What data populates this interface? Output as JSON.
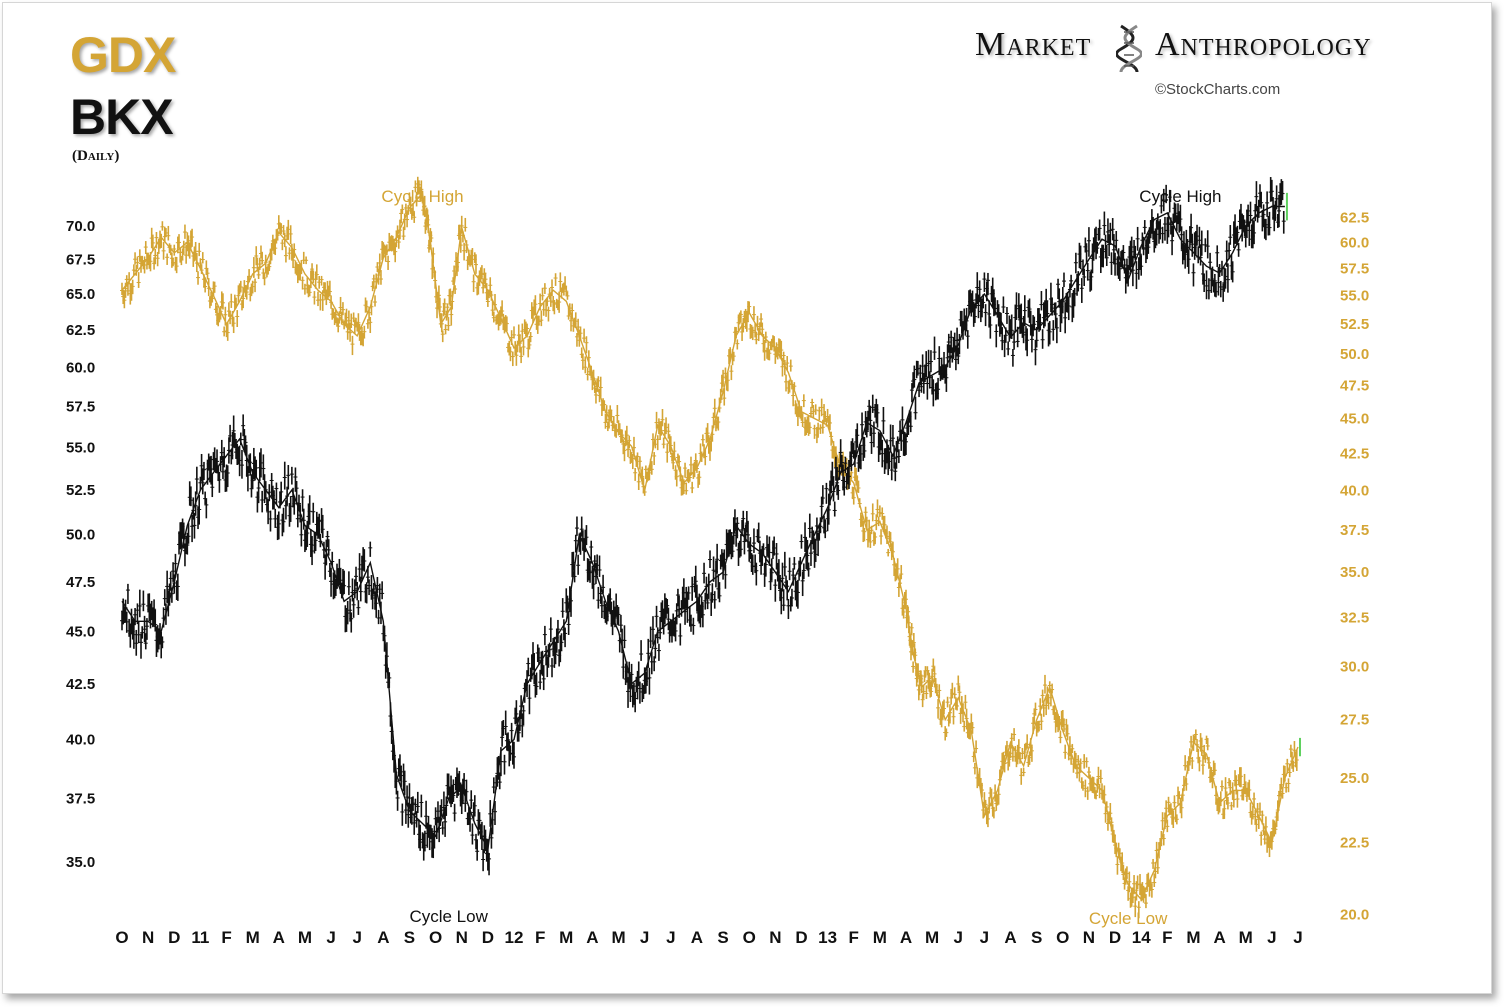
{
  "header": {
    "series_top": "GDX",
    "series_bottom": "BKX",
    "frequency": "(Daily)",
    "brand_left": "Market",
    "brand_right": "Anthropology",
    "brand_icon": "dna-helix-icon",
    "copyright": "©StockCharts.com"
  },
  "colors": {
    "gdx": "#d4a535",
    "bkx": "#111111",
    "last_bar": "#5fd15f"
  },
  "chart_data": {
    "type": "line",
    "title": "",
    "x_ticks": [
      "O",
      "N",
      "D",
      "11",
      "F",
      "M",
      "A",
      "M",
      "J",
      "J",
      "A",
      "S",
      "O",
      "N",
      "D",
      "12",
      "F",
      "M",
      "A",
      "M",
      "J",
      "J",
      "A",
      "S",
      "O",
      "N",
      "D",
      "13",
      "F",
      "M",
      "A",
      "M",
      "J",
      "J",
      "A",
      "S",
      "O",
      "N",
      "D",
      "14",
      "F",
      "M",
      "A",
      "M",
      "J",
      "J"
    ],
    "x_range": [
      "2010-10",
      "2014-07"
    ],
    "left_axis": {
      "series": "BKX",
      "scale": "log",
      "ylim": [
        32.5,
        74
      ],
      "ticks": [
        "70.0",
        "67.5",
        "65.0",
        "62.5",
        "60.0",
        "57.5",
        "55.0",
        "52.5",
        "50.0",
        "47.5",
        "45.0",
        "42.5",
        "40.0",
        "37.5",
        "35.0"
      ]
    },
    "right_axis": {
      "series": "GDX",
      "scale": "log",
      "ylim": [
        19.5,
        67
      ],
      "ticks": [
        "62.5",
        "60.0",
        "57.5",
        "55.0",
        "52.5",
        "50.0",
        "47.5",
        "45.0",
        "42.5",
        "40.0",
        "37.5",
        "35.0",
        "32.5",
        "30.0",
        "27.5",
        "25.0",
        "22.5",
        "20.0"
      ]
    },
    "series": [
      {
        "name": "GDX",
        "axis": "right",
        "points": [
          [
            0,
            55.5
          ],
          [
            0.5,
            57.0
          ],
          [
            1,
            58.5
          ],
          [
            1.5,
            60.5
          ],
          [
            2,
            59.0
          ],
          [
            2.5,
            60.0
          ],
          [
            3,
            57.5
          ],
          [
            3.5,
            55.0
          ],
          [
            4,
            52.5
          ],
          [
            4.5,
            54.5
          ],
          [
            5,
            57.0
          ],
          [
            5.5,
            58.0
          ],
          [
            6,
            61.0
          ],
          [
            6.5,
            59.5
          ],
          [
            7,
            57.0
          ],
          [
            7.5,
            55.5
          ],
          [
            8,
            54.5
          ],
          [
            8.5,
            52.5
          ],
          [
            9,
            51.5
          ],
          [
            9.5,
            54.0
          ],
          [
            10,
            58.5
          ],
          [
            10.5,
            60.5
          ],
          [
            11,
            63.5
          ],
          [
            11.5,
            65.0
          ],
          [
            11.8,
            60.0
          ],
          [
            12.2,
            52.5
          ],
          [
            12.6,
            54.0
          ],
          [
            13,
            61.5
          ],
          [
            13.5,
            57.0
          ],
          [
            14,
            55.5
          ],
          [
            14.5,
            53.0
          ],
          [
            15,
            50.5
          ],
          [
            15.5,
            51.5
          ],
          [
            16,
            54.0
          ],
          [
            16.5,
            55.5
          ],
          [
            17,
            54.5
          ],
          [
            17.5,
            51.5
          ],
          [
            18,
            48.5
          ],
          [
            18.5,
            45.5
          ],
          [
            19,
            44.0
          ],
          [
            19.5,
            43.0
          ],
          [
            20,
            40.0
          ],
          [
            20.5,
            44.5
          ],
          [
            21,
            43.0
          ],
          [
            21.5,
            40.5
          ],
          [
            22,
            41.5
          ],
          [
            22.5,
            43.5
          ],
          [
            23,
            47.0
          ],
          [
            23.5,
            51.5
          ],
          [
            24,
            53.5
          ],
          [
            24.5,
            51.5
          ],
          [
            25,
            50.5
          ],
          [
            25.5,
            48.5
          ],
          [
            26,
            45.5
          ],
          [
            26.5,
            45.0
          ],
          [
            27,
            44.5
          ],
          [
            27.5,
            41.5
          ],
          [
            28,
            40.5
          ],
          [
            28.5,
            37.5
          ],
          [
            29,
            38.0
          ],
          [
            29.5,
            36.0
          ],
          [
            30,
            33.0
          ],
          [
            30.3,
            30.5
          ],
          [
            30.6,
            29.0
          ],
          [
            31,
            29.5
          ],
          [
            31.5,
            27.5
          ],
          [
            32,
            28.5
          ],
          [
            32.5,
            27.0
          ],
          [
            33,
            23.5
          ],
          [
            33.5,
            24.5
          ],
          [
            34,
            26.5
          ],
          [
            34.5,
            25.5
          ],
          [
            35,
            27.5
          ],
          [
            35.5,
            29.0
          ],
          [
            36,
            27.0
          ],
          [
            36.5,
            25.5
          ],
          [
            37,
            25.0
          ],
          [
            37.5,
            24.5
          ],
          [
            38,
            22.5
          ],
          [
            38.5,
            21.0
          ],
          [
            39,
            20.5
          ],
          [
            39.5,
            21.5
          ],
          [
            40,
            23.5
          ],
          [
            40.5,
            24.0
          ],
          [
            41,
            26.5
          ],
          [
            41.5,
            26.0
          ],
          [
            42,
            24.0
          ],
          [
            42.5,
            24.5
          ],
          [
            43,
            24.5
          ],
          [
            43.5,
            23.5
          ],
          [
            44,
            22.5
          ],
          [
            44.5,
            25.0
          ],
          [
            45,
            26.3
          ]
        ]
      },
      {
        "name": "BKX",
        "axis": "left",
        "points": [
          [
            0,
            46.5
          ],
          [
            0.5,
            45.5
          ],
          [
            1,
            45.5
          ],
          [
            1.5,
            45.0
          ],
          [
            2,
            47.5
          ],
          [
            2.5,
            50.5
          ],
          [
            3,
            52.5
          ],
          [
            3.5,
            53.5
          ],
          [
            4,
            54.5
          ],
          [
            4.5,
            55.5
          ],
          [
            5,
            53.5
          ],
          [
            5.5,
            52.5
          ],
          [
            6,
            51.5
          ],
          [
            6.5,
            52.5
          ],
          [
            7,
            50.5
          ],
          [
            7.5,
            50.0
          ],
          [
            8,
            48.5
          ],
          [
            8.5,
            46.5
          ],
          [
            9,
            47.0
          ],
          [
            9.5,
            48.5
          ],
          [
            10,
            45.5
          ],
          [
            10.5,
            38.5
          ],
          [
            11,
            37.0
          ],
          [
            11.5,
            36.5
          ],
          [
            12,
            36.0
          ],
          [
            12.5,
            37.5
          ],
          [
            13,
            38.0
          ],
          [
            13.5,
            36.5
          ],
          [
            14,
            35.5
          ],
          [
            14.5,
            39.5
          ],
          [
            15,
            40.0
          ],
          [
            15.5,
            42.5
          ],
          [
            16,
            43.5
          ],
          [
            16.5,
            44.5
          ],
          [
            17,
            45.5
          ],
          [
            17.5,
            50.0
          ],
          [
            18,
            48.5
          ],
          [
            18.5,
            46.5
          ],
          [
            19,
            45.0
          ],
          [
            19.5,
            42.5
          ],
          [
            20,
            43.0
          ],
          [
            20.5,
            45.0
          ],
          [
            21,
            45.5
          ],
          [
            21.5,
            46.0
          ],
          [
            22,
            46.5
          ],
          [
            22.5,
            47.5
          ],
          [
            23,
            48.0
          ],
          [
            23.5,
            50.5
          ],
          [
            24,
            49.5
          ],
          [
            24.5,
            49.0
          ],
          [
            25,
            48.0
          ],
          [
            25.5,
            47.0
          ],
          [
            26,
            48.5
          ],
          [
            26.5,
            50.0
          ],
          [
            27,
            51.5
          ],
          [
            27.5,
            53.5
          ],
          [
            28,
            54.0
          ],
          [
            28.5,
            56.5
          ],
          [
            29,
            56.0
          ],
          [
            29.5,
            54.5
          ],
          [
            30,
            56.5
          ],
          [
            30.5,
            59.0
          ],
          [
            31,
            59.5
          ],
          [
            31.5,
            60.0
          ],
          [
            32,
            61.5
          ],
          [
            32.5,
            64.0
          ],
          [
            33,
            65.0
          ],
          [
            33.5,
            63.5
          ],
          [
            34,
            62.0
          ],
          [
            34.5,
            63.0
          ],
          [
            35,
            62.5
          ],
          [
            35.5,
            63.5
          ],
          [
            36,
            64.5
          ],
          [
            36.5,
            66.0
          ],
          [
            37,
            67.5
          ],
          [
            37.5,
            69.0
          ],
          [
            38,
            68.5
          ],
          [
            38.5,
            66.0
          ],
          [
            39,
            68.5
          ],
          [
            39.5,
            70.5
          ],
          [
            40,
            71.0
          ],
          [
            40.5,
            69.0
          ],
          [
            41,
            68.0
          ],
          [
            41.5,
            67.0
          ],
          [
            42,
            66.5
          ],
          [
            42.5,
            68.0
          ],
          [
            43,
            70.0
          ],
          [
            43.5,
            71.0
          ],
          [
            44,
            71.5
          ],
          [
            44.5,
            71.5
          ]
        ]
      }
    ],
    "annotations": [
      {
        "text": "Cycle High",
        "series": "GDX",
        "x": 11.5
      },
      {
        "text": "Cycle High",
        "series": "BKX",
        "x": 40.5
      },
      {
        "text": "Cycle Low",
        "series": "BKX",
        "x": 12.5
      },
      {
        "text": "Cycle Low",
        "series": "GDX",
        "x": 38.5
      }
    ]
  }
}
